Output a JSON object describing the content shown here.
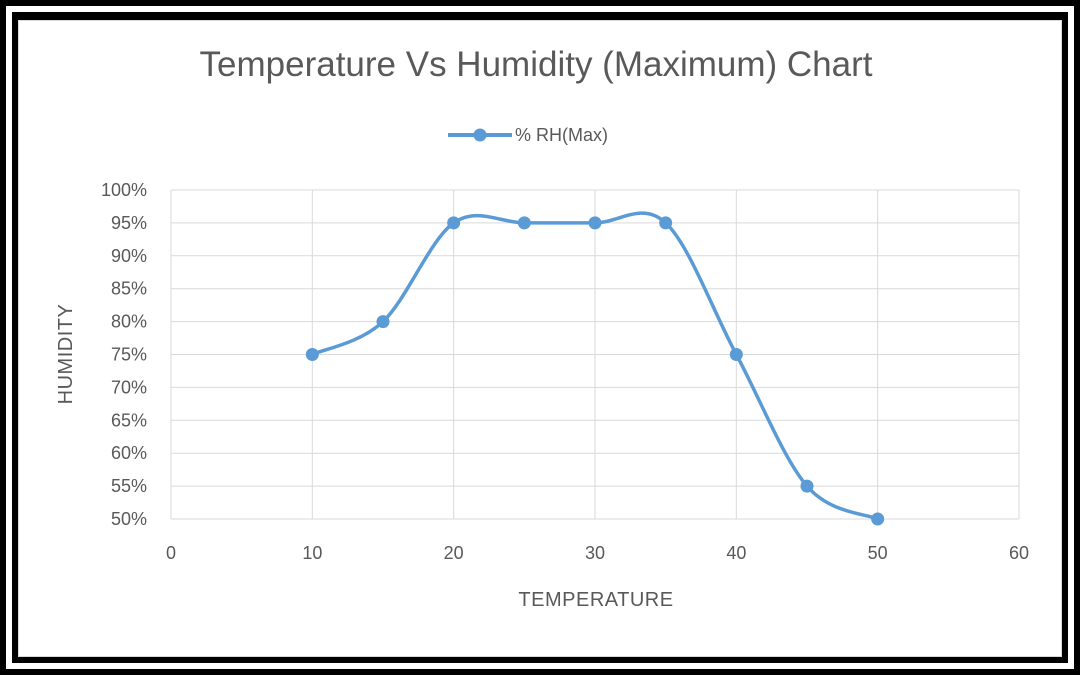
{
  "chart_data": {
    "type": "line",
    "title": "Temperature Vs Humidity (Maximum) Chart",
    "xlabel": "TEMPERATURE",
    "ylabel": "HUMIDITY",
    "xlim": [
      0,
      60
    ],
    "ylim": [
      50,
      100
    ],
    "x_ticks": [
      "0",
      "10",
      "20",
      "30",
      "40",
      "50",
      "60"
    ],
    "y_ticks": [
      "50%",
      "55%",
      "60%",
      "65%",
      "70%",
      "75%",
      "80%",
      "85%",
      "90%",
      "95%",
      "100%"
    ],
    "grid": true,
    "smooth": true,
    "legend_position": "top",
    "series": [
      {
        "name": "% RH(Max)",
        "color": "#5b9bd5",
        "x": [
          10,
          15,
          20,
          25,
          30,
          35,
          40,
          45,
          50
        ],
        "y": [
          75,
          80,
          95,
          95,
          95,
          95,
          75,
          55,
          50
        ]
      }
    ]
  }
}
